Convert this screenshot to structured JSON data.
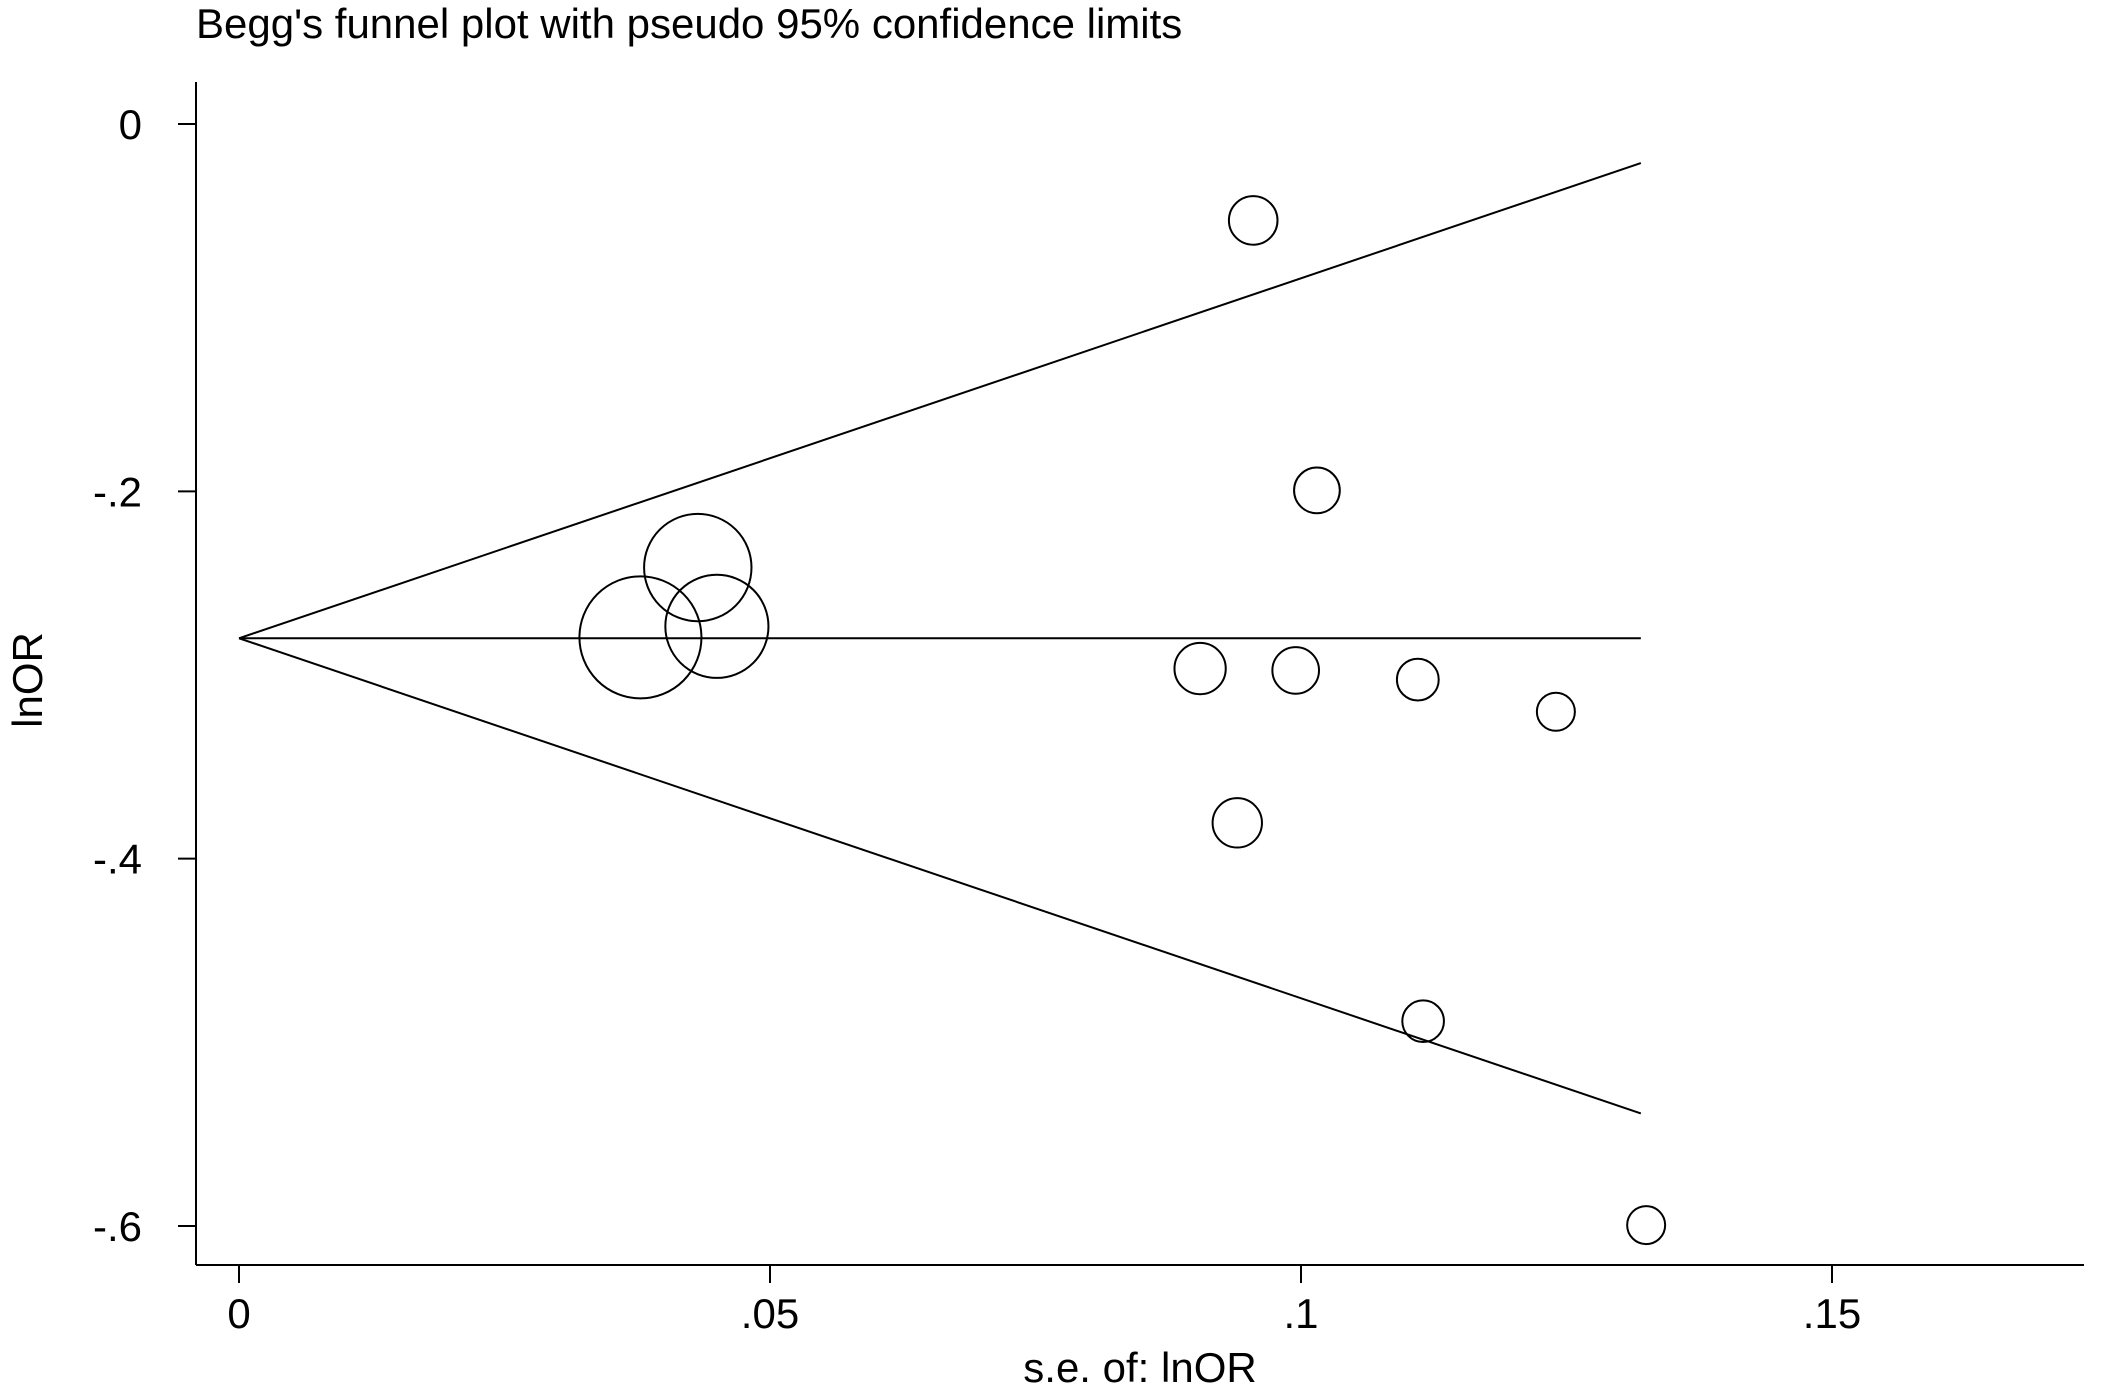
{
  "chart_data": {
    "type": "scatter",
    "title": "Begg's funnel plot with pseudo 95% confidence limits",
    "xlabel": "s.e. of: lnOR",
    "ylabel": "lnOR",
    "xlim": [
      -0.0035,
      0.151
    ],
    "ylim": [
      -0.623,
      0.02
    ],
    "x_ticks": [
      {
        "value": 0,
        "label": "0"
      },
      {
        "value": 0.05,
        "label": ".05"
      },
      {
        "value": 0.1,
        "label": ".1"
      },
      {
        "value": 0.15,
        "label": ".15"
      }
    ],
    "y_ticks": [
      {
        "value": 0,
        "label": "0"
      },
      {
        "value": -0.2,
        "label": "-.2"
      },
      {
        "value": -0.4,
        "label": "-.4"
      },
      {
        "value": -0.6,
        "label": "-.6"
      }
    ],
    "pooled_estimate": -0.28,
    "funnel_max_se": 0.132,
    "grid": false,
    "legend": "none",
    "marker": "hollow circle sized by study weight",
    "points": [
      {
        "se": 0.0378,
        "lnOR": -0.2795
      },
      {
        "se": 0.0432,
        "lnOR": -0.2415
      },
      {
        "se": 0.045,
        "lnOR": -0.2735
      },
      {
        "se": 0.0905,
        "lnOR": -0.2965
      },
      {
        "se": 0.0955,
        "lnOR": -0.0525
      },
      {
        "se": 0.094,
        "lnOR": -0.3805
      },
      {
        "se": 0.0995,
        "lnOR": -0.2975
      },
      {
        "se": 0.1015,
        "lnOR": -0.1995
      },
      {
        "se": 0.111,
        "lnOR": -0.3025
      },
      {
        "se": 0.1115,
        "lnOR": -0.4885
      },
      {
        "se": 0.124,
        "lnOR": -0.32
      },
      {
        "se": 0.1325,
        "lnOR": -0.5995
      }
    ]
  }
}
